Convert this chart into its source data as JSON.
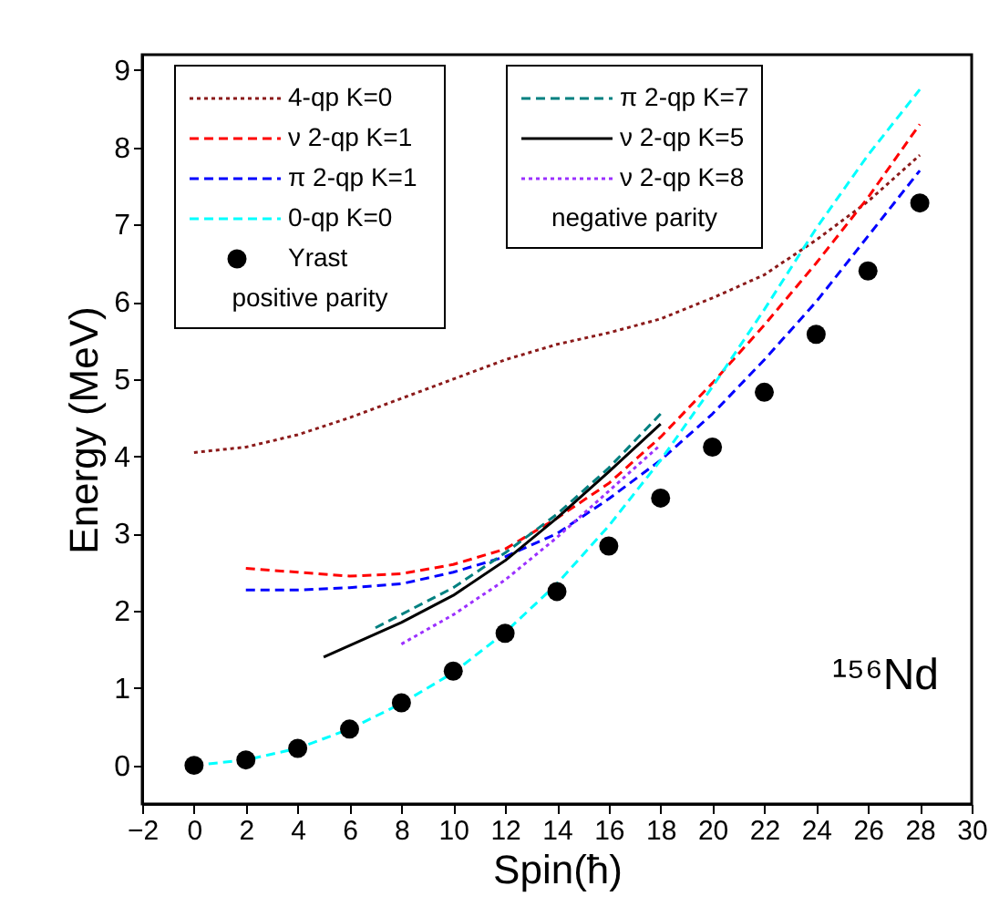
{
  "chart_data": {
    "type": "line",
    "xlabel": "Spin(ħ)",
    "ylabel": "Energy (MeV)",
    "xlim": [
      -2,
      30
    ],
    "ylim": [
      -0.5,
      9.2
    ],
    "xticks": [
      -2,
      0,
      2,
      4,
      6,
      8,
      10,
      12,
      14,
      16,
      18,
      20,
      22,
      24,
      26,
      28,
      30
    ],
    "yticks": [
      0,
      1,
      2,
      3,
      4,
      5,
      6,
      7,
      8,
      9
    ],
    "grid": false,
    "legend": "top left",
    "series": [
      {
        "name": "4-qp K=0",
        "color": "#8b1a1a",
        "line_style": "dotted",
        "x": [
          0,
          2,
          4,
          6,
          8,
          10,
          12,
          14,
          16,
          18,
          20,
          22,
          24,
          26,
          28
        ],
        "values": [
          4.05,
          4.12,
          4.28,
          4.5,
          4.75,
          5.0,
          5.25,
          5.45,
          5.6,
          5.78,
          6.05,
          6.35,
          6.8,
          7.3,
          7.9
        ]
      },
      {
        "name": "ν 2-qp K=1",
        "color": "#ff0000",
        "line_style": "dashed",
        "x": [
          2,
          4,
          6,
          8,
          10,
          12,
          14,
          16,
          18,
          20,
          22,
          24,
          26,
          28
        ],
        "values": [
          2.55,
          2.5,
          2.45,
          2.48,
          2.6,
          2.8,
          3.2,
          3.65,
          4.25,
          4.95,
          5.7,
          6.5,
          7.35,
          8.3
        ]
      },
      {
        "name": "π 2-qp K=1",
        "color": "#0000ff",
        "line_style": "dashed",
        "x": [
          2,
          4,
          6,
          8,
          10,
          12,
          14,
          16,
          18,
          20,
          22,
          24,
          26,
          28
        ],
        "values": [
          2.27,
          2.27,
          2.3,
          2.35,
          2.5,
          2.7,
          3.0,
          3.45,
          3.95,
          4.55,
          5.25,
          6.0,
          6.85,
          7.7
        ]
      },
      {
        "name": "0-qp K=0",
        "color": "#00ffff",
        "line_style": "dashed",
        "x": [
          0,
          2,
          4,
          6,
          8,
          10,
          12,
          14,
          16,
          18,
          20,
          22,
          24,
          26,
          28
        ],
        "values": [
          0,
          0.07,
          0.22,
          0.47,
          0.8,
          1.2,
          1.72,
          2.35,
          3.1,
          3.95,
          4.9,
          5.9,
          6.95,
          7.9,
          8.75
        ]
      },
      {
        "name": "Yrast",
        "type": "scatter",
        "marker": "circle",
        "color": "#000000",
        "x": [
          0,
          2,
          4,
          6,
          8,
          10,
          12,
          14,
          16,
          18,
          20,
          22,
          24,
          26,
          28
        ],
        "values": [
          0,
          0.07,
          0.22,
          0.47,
          0.81,
          1.22,
          1.71,
          2.25,
          2.84,
          3.46,
          4.12,
          4.83,
          5.58,
          6.4,
          7.28
        ]
      },
      {
        "name": "π 2-qp K=7",
        "color": "#008080",
        "line_style": "dashed",
        "x": [
          7,
          10,
          12,
          14,
          16,
          18
        ],
        "values": [
          1.78,
          2.3,
          2.75,
          3.25,
          3.85,
          4.55
        ]
      },
      {
        "name": "ν 2-qp K=5",
        "color": "#000000",
        "line_style": "solid",
        "x": [
          5,
          8,
          10,
          12,
          14,
          16,
          18
        ],
        "values": [
          1.4,
          1.85,
          2.2,
          2.65,
          3.2,
          3.8,
          4.42
        ]
      },
      {
        "name": "ν 2-qp K=8",
        "color": "#9b30ff",
        "line_style": "dotted",
        "x": [
          8,
          10,
          12,
          14,
          16,
          18
        ],
        "values": [
          1.57,
          1.95,
          2.4,
          2.95,
          3.55,
          4.15
        ]
      }
    ],
    "annotations": [
      "positive parity",
      "negative parity",
      "¹⁵⁶Nd"
    ]
  }
}
